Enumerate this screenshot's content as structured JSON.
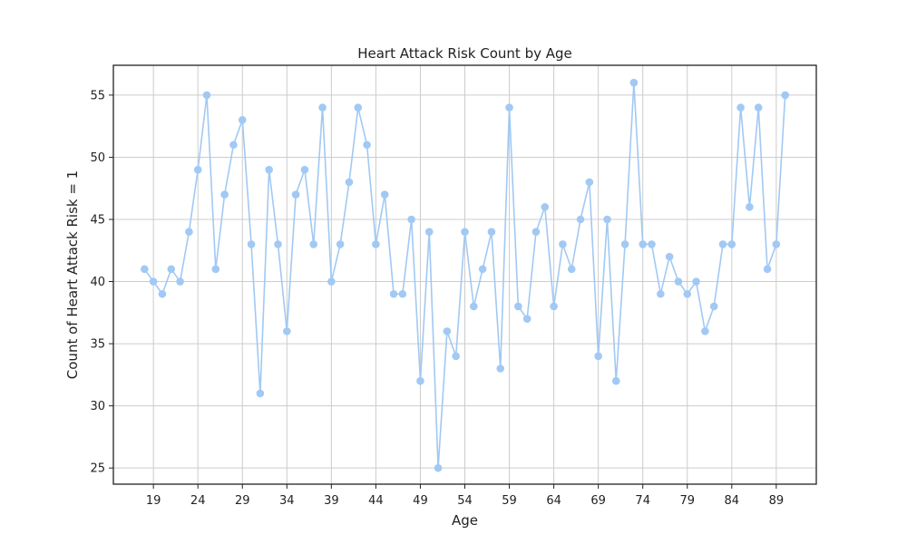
{
  "chart_data": {
    "type": "line",
    "title": "Heart Attack Risk Count by Age",
    "xlabel": "Age",
    "ylabel": "Count of Heart Attack Risk = 1",
    "xlim": [
      14.5,
      93.5
    ],
    "ylim": [
      23.7,
      57.4
    ],
    "x_ticks": [
      19,
      24,
      29,
      34,
      39,
      44,
      49,
      54,
      59,
      64,
      69,
      74,
      79,
      84,
      89
    ],
    "y_ticks": [
      25,
      30,
      35,
      40,
      45,
      50,
      55
    ],
    "grid": true,
    "line_color": "#a1c9f4",
    "x": [
      18,
      19,
      20,
      21,
      22,
      23,
      24,
      25,
      26,
      27,
      28,
      29,
      30,
      31,
      32,
      33,
      34,
      35,
      36,
      37,
      38,
      39,
      40,
      41,
      42,
      43,
      44,
      45,
      46,
      47,
      48,
      49,
      50,
      51,
      52,
      53,
      54,
      55,
      56,
      57,
      58,
      59,
      60,
      61,
      62,
      63,
      64,
      65,
      66,
      67,
      68,
      69,
      70,
      71,
      72,
      73,
      74,
      75,
      76,
      77,
      78,
      79,
      80,
      81,
      82,
      83,
      84,
      85,
      86,
      87,
      88,
      89,
      90
    ],
    "values": [
      41,
      40,
      39,
      41,
      40,
      44,
      49,
      55,
      41,
      47,
      51,
      53,
      43,
      31,
      49,
      43,
      36,
      47,
      49,
      43,
      54,
      40,
      43,
      48,
      54,
      51,
      43,
      47,
      39,
      39,
      45,
      32,
      44,
      25,
      36,
      34,
      44,
      38,
      41,
      44,
      33,
      54,
      38,
      37,
      44,
      46,
      38,
      43,
      41,
      45,
      48,
      34,
      45,
      32,
      43,
      56,
      43,
      43,
      39,
      42,
      40,
      39,
      40,
      36,
      38,
      43,
      43,
      54,
      46,
      54,
      41,
      43,
      55
    ]
  }
}
